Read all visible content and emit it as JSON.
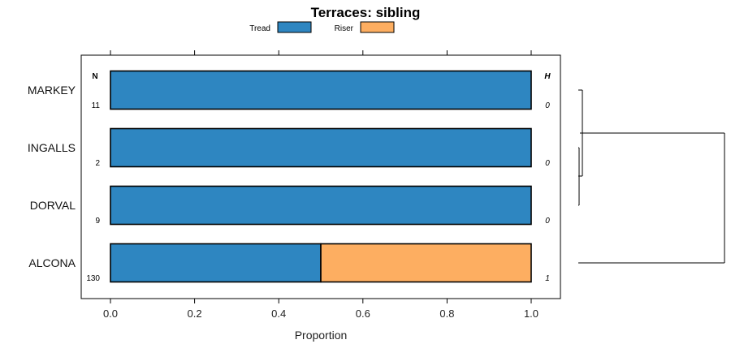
{
  "chart_data": {
    "type": "bar",
    "orientation": "horizontal",
    "stacked": true,
    "title": "Terraces: sibling",
    "xlabel": "Proportion",
    "ylabel": "",
    "xlim": [
      0,
      1
    ],
    "x_ticks": [
      "0.0",
      "0.2",
      "0.4",
      "0.6",
      "0.8",
      "1.0"
    ],
    "x_tick_values": [
      0,
      0.2,
      0.4,
      0.6,
      0.8,
      1.0
    ],
    "legend_placement": "top-center",
    "categories": [
      "MARKEY",
      "INGALLS",
      "DORVAL",
      "ALCONA"
    ],
    "series": [
      {
        "name": "Tread",
        "color": "#2e86c1",
        "values": [
          1.0,
          1.0,
          1.0,
          0.5
        ]
      },
      {
        "name": "Riser",
        "color": "#fdae61",
        "values": [
          0.0,
          0.0,
          0.0,
          0.5
        ]
      }
    ],
    "n_header": "N",
    "n_values": [
      "11",
      "2",
      "9",
      "130"
    ],
    "h_header": "H",
    "h_values": [
      "0",
      "0",
      "0",
      "1"
    ],
    "dendrogram": true
  }
}
